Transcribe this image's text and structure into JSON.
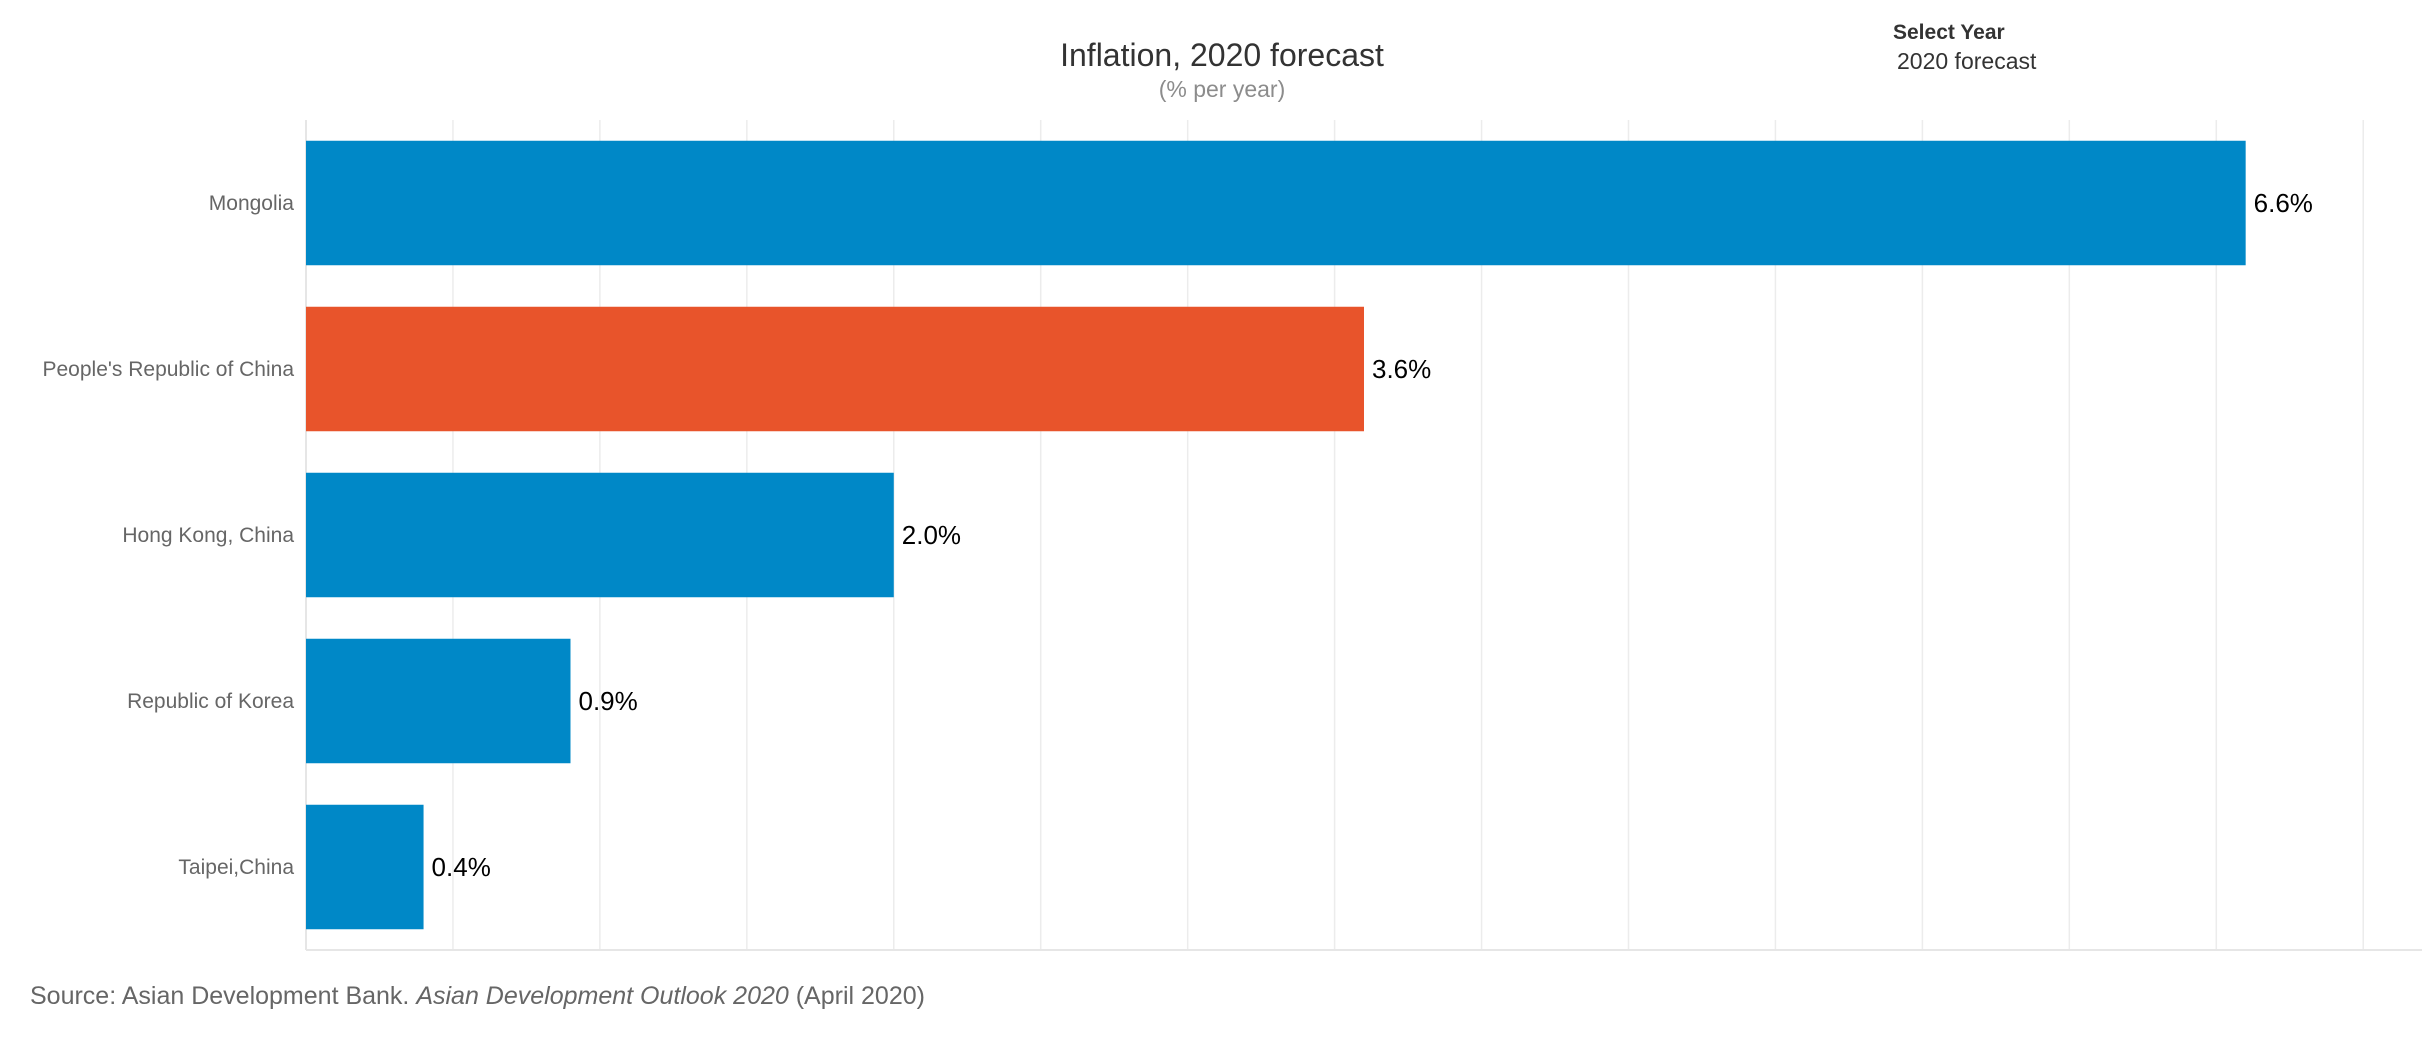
{
  "year_selector": {
    "label": "Select Year",
    "value": "2020 forecast"
  },
  "source": {
    "prefix": "Source: Asian Development Bank. ",
    "publication": "Asian Development Outlook 2020",
    "suffix": " (April 2020)"
  },
  "colors": {
    "default_bar": "#0088c7",
    "highlight_bar": "#e8542b",
    "grid": "#ececec"
  },
  "chart_data": {
    "type": "bar",
    "orientation": "horizontal",
    "title": "Inflation, 2020 forecast",
    "subtitle": "(% per year)",
    "categories": [
      "Mongolia",
      "People's Republic of China",
      "Hong Kong, China",
      "Republic of Korea",
      "Taipei,China"
    ],
    "values": [
      6.6,
      3.6,
      2.0,
      0.9,
      0.4
    ],
    "data_labels": [
      "6.6%",
      "3.6%",
      "2.0%",
      "0.9%",
      "0.4%"
    ],
    "highlight": [
      "People's Republic of China"
    ],
    "xlim": [
      0,
      7.2
    ],
    "grid_step": 0.5,
    "grid": true,
    "legend": "none"
  }
}
